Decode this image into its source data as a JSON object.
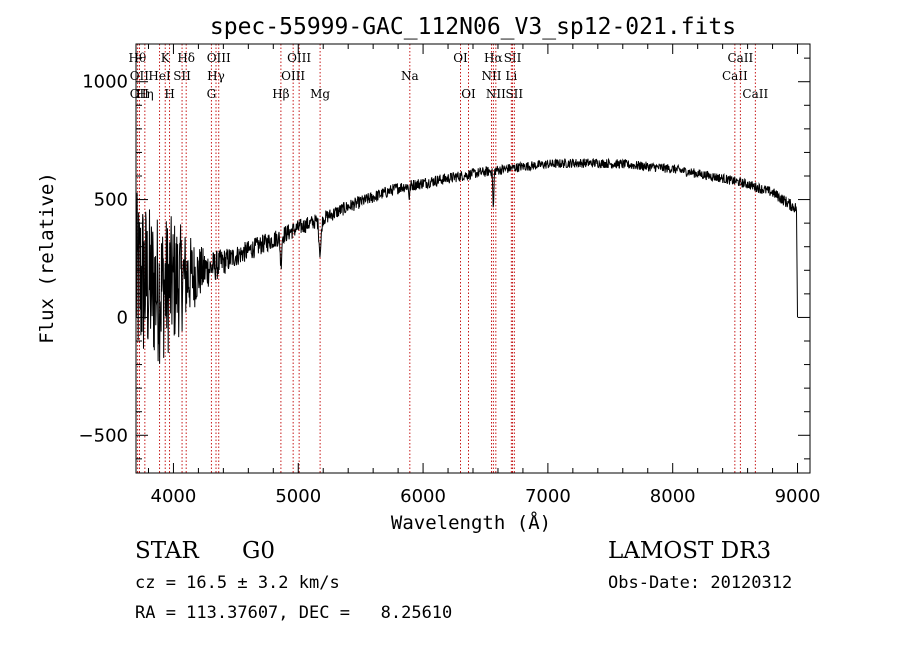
{
  "chart_data": {
    "type": "line",
    "title": "spec-55999-GAC_112N06_V3_sp12-021.fits",
    "xlabel": "Wavelength (Å)",
    "ylabel": "Flux (relative)",
    "xlim": [
      3700,
      9100
    ],
    "ylim": [
      -660,
      1160
    ],
    "x_ticks": [
      4000,
      5000,
      6000,
      7000,
      8000,
      9000
    ],
    "x_tick_labels": [
      "4000",
      "5000",
      "6000",
      "7000",
      "8000",
      "9000"
    ],
    "y_ticks": [
      -500,
      0,
      500,
      1000
    ],
    "y_tick_labels": [
      "−500",
      "0",
      "500",
      "1000"
    ],
    "x_minor_step": 200,
    "y_minor_step": 100,
    "continuum": {
      "x": [
        3700,
        3750,
        3800,
        3850,
        3900,
        4000,
        4100,
        4200,
        4300,
        4500,
        4800,
        5000,
        5200,
        5400,
        5600,
        5800,
        6000,
        6200,
        6400,
        6600,
        6800,
        7000,
        7200,
        7400,
        7600,
        7800,
        8000,
        8200,
        8400,
        8600,
        8800,
        8950,
        9000
      ],
      "y": [
        150,
        160,
        140,
        130,
        120,
        150,
        170,
        190,
        210,
        260,
        330,
        380,
        420,
        470,
        510,
        550,
        570,
        590,
        610,
        625,
        640,
        650,
        655,
        655,
        650,
        640,
        630,
        610,
        590,
        565,
        530,
        475,
        460
      ],
      "noise": [
        380,
        380,
        340,
        330,
        320,
        280,
        200,
        120,
        70,
        45,
        40,
        35,
        30,
        28,
        26,
        25,
        25,
        24,
        22,
        22,
        20,
        20,
        20,
        20,
        20,
        20,
        20,
        20,
        20,
        20,
        22,
        25,
        25
      ]
    },
    "absorption_features": [
      {
        "x": 4861,
        "depth": 120,
        "width": 8
      },
      {
        "x": 5175,
        "depth": 140,
        "width": 12
      },
      {
        "x": 5890,
        "depth": 50,
        "width": 6
      },
      {
        "x": 6563,
        "depth": 160,
        "width": 6
      }
    ],
    "spectrum_end": {
      "x": 9000,
      "y": 0
    },
    "line_markers": [
      {
        "x": 3711,
        "tier": 0,
        "label": "Hθ"
      },
      {
        "x": 3727,
        "tier": 1,
        "label": "OII"
      },
      {
        "x": 3727,
        "tier": 2,
        "label": "OII"
      },
      {
        "x": 3771,
        "tier": 2,
        "label": "Hη"
      },
      {
        "x": 3889,
        "tier": 1,
        "label": "HeI"
      },
      {
        "x": 3934,
        "tier": 0,
        "label": "K"
      },
      {
        "x": 3969,
        "tier": 2,
        "label": "H"
      },
      {
        "x": 4069,
        "tier": 1,
        "label": "SII"
      },
      {
        "x": 4102,
        "tier": 0,
        "label": "Hδ"
      },
      {
        "x": 4304,
        "tier": 2,
        "label": "G"
      },
      {
        "x": 4341,
        "tier": 1,
        "label": "Hγ"
      },
      {
        "x": 4363,
        "tier": 0,
        "label": "OIII"
      },
      {
        "x": 4861,
        "tier": 2,
        "label": "Hβ"
      },
      {
        "x": 4959,
        "tier": 1,
        "label": "OIII"
      },
      {
        "x": 5007,
        "tier": 0,
        "label": "OIII"
      },
      {
        "x": 5175,
        "tier": 2,
        "label": "Mg"
      },
      {
        "x": 5894,
        "tier": 1,
        "label": "Na"
      },
      {
        "x": 6300,
        "tier": 0,
        "label": "OI"
      },
      {
        "x": 6364,
        "tier": 2,
        "label": "OI"
      },
      {
        "x": 6548,
        "tier": 1,
        "label": "NII"
      },
      {
        "x": 6563,
        "tier": 0,
        "label": "Hα"
      },
      {
        "x": 6583,
        "tier": 2,
        "label": "NII"
      },
      {
        "x": 6707,
        "tier": 1,
        "label": "Li"
      },
      {
        "x": 6717,
        "tier": 0,
        "label": "SII"
      },
      {
        "x": 6731,
        "tier": 2,
        "label": "SII"
      },
      {
        "x": 8498,
        "tier": 1,
        "label": "CaII"
      },
      {
        "x": 8542,
        "tier": 0,
        "label": "CaII"
      },
      {
        "x": 8662,
        "tier": 2,
        "label": "CaII"
      }
    ]
  },
  "info": {
    "object_class": "STAR",
    "subclass": "G0",
    "survey": "LAMOST DR3",
    "redshift_line": "cz = 16.5 ± 3.2 km/s",
    "obs_date": "Obs-Date: 20120312",
    "coords": "RA = 113.37607, DEC =   8.25610"
  }
}
